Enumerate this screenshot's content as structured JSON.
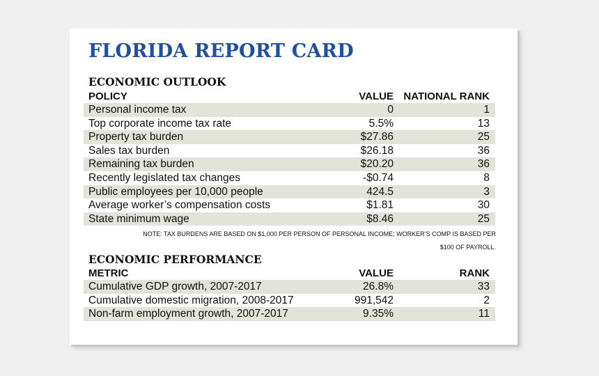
{
  "title": "FLORIDA REPORT CARD",
  "outlook": {
    "heading": "ECONOMIC OUTLOOK",
    "col_policy": "POLICY",
    "col_value": "VALUE",
    "col_rank": "NATIONAL RANK",
    "rows": [
      {
        "label": "Personal income tax",
        "value": "0",
        "rank": "1"
      },
      {
        "label": "Top corporate income tax rate",
        "value": "5.5%",
        "rank": "13"
      },
      {
        "label": "Property tax burden",
        "value": "$27.86",
        "rank": "25"
      },
      {
        "label": "Sales tax burden",
        "value": "$26.18",
        "rank": "36"
      },
      {
        "label": "Remaining tax burden",
        "value": "$20.20",
        "rank": "36"
      },
      {
        "label": "Recently legislated tax changes",
        "value": "-$0.74",
        "rank": "8"
      },
      {
        "label": "Public employees per 10,000 people",
        "value": "424.5",
        "rank": "3"
      },
      {
        "label": "Average worker’s compensation costs",
        "value": "$1.81",
        "rank": "30"
      },
      {
        "label": "State minimum wage",
        "value": "$8.46",
        "rank": "25"
      }
    ],
    "note_line1": "NOTE: TAX BURDENS ARE BASED ON $1,000 PER PERSON OF PERSONAL INCOME; WORKER’S COMP IS BASED PER",
    "note_line2": "$100 OF PAYROLL."
  },
  "performance": {
    "heading": "ECONOMIC PERFORMANCE",
    "col_metric": "METRIC",
    "col_value": "VALUE",
    "col_rank": "RANK",
    "rows": [
      {
        "label": "Cumulative GDP growth, 2007-2017",
        "value": "26.8%",
        "rank": "33"
      },
      {
        "label": "Cumulative domestic migration, 2008-2017",
        "value": "991,542",
        "rank": "2"
      },
      {
        "label": "Non-farm employment growth, 2007-2017",
        "value": "9.35%",
        "rank": "11"
      }
    ]
  },
  "colors": {
    "title": "#1f4fa3",
    "row_shade": "#e2e3d9"
  }
}
